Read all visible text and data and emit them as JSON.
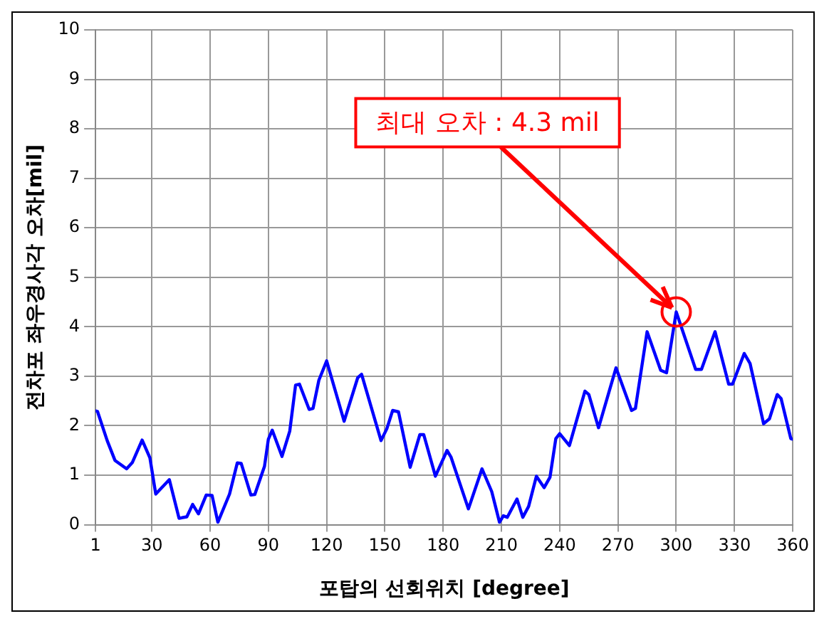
{
  "chart_data": {
    "type": "line",
    "xlabel": "포탑의 선회위치 [degree]",
    "ylabel": "전차포 좌우경사각 오차[mil]",
    "x": [
      1,
      2,
      7,
      11,
      17,
      20,
      25,
      29,
      32,
      39,
      44,
      48,
      51,
      54,
      58,
      61,
      64,
      70,
      74,
      76,
      81,
      83,
      88,
      90,
      92,
      97,
      101,
      104,
      106,
      111,
      113,
      116,
      120,
      129,
      136,
      138,
      148,
      151,
      154,
      157,
      163,
      168,
      170,
      176,
      182,
      184,
      193,
      200,
      205,
      209,
      211,
      213,
      218,
      221,
      224,
      228,
      232,
      235,
      238,
      240,
      245,
      253,
      255,
      260,
      269,
      277,
      279,
      285,
      292,
      295,
      300,
      310,
      313,
      320,
      327,
      329,
      335,
      338,
      345,
      348,
      352,
      354,
      359,
      360
    ],
    "series": [
      {
        "color": "#0000ff",
        "values": [
          2.3,
          2.29,
          1.7,
          1.3,
          1.13,
          1.26,
          1.71,
          1.35,
          0.62,
          0.91,
          0.13,
          0.16,
          0.41,
          0.22,
          0.6,
          0.59,
          0.05,
          0.62,
          1.25,
          1.24,
          0.6,
          0.61,
          1.18,
          1.73,
          1.91,
          1.38,
          1.89,
          2.82,
          2.84,
          2.33,
          2.35,
          2.92,
          3.31,
          2.09,
          2.97,
          3.04,
          1.7,
          1.94,
          2.31,
          2.28,
          1.16,
          1.82,
          1.82,
          0.98,
          1.5,
          1.37,
          0.32,
          1.13,
          0.67,
          0.05,
          0.18,
          0.15,
          0.52,
          0.15,
          0.37,
          0.98,
          0.75,
          0.96,
          1.74,
          1.84,
          1.6,
          2.7,
          2.63,
          1.96,
          3.17,
          2.31,
          2.35,
          3.9,
          3.12,
          3.07,
          4.3,
          3.14,
          3.14,
          3.9,
          2.84,
          2.84,
          3.46,
          3.26,
          2.04,
          2.14,
          2.63,
          2.55,
          1.74,
          1.73
        ]
      }
    ],
    "xlim": [
      1,
      360
    ],
    "xticks": [
      1,
      30,
      60,
      90,
      120,
      150,
      180,
      210,
      240,
      270,
      300,
      330,
      360
    ],
    "ylim": [
      0,
      10
    ],
    "yticks": [
      0,
      1,
      2,
      3,
      4,
      5,
      6,
      7,
      8,
      9,
      10
    ],
    "grid": true,
    "legend": false,
    "marker": "none",
    "line_style": "solid",
    "annotations": [
      {
        "text": "최대 오차 : 4.3 mil",
        "x": 300,
        "y": 4.3
      }
    ]
  }
}
